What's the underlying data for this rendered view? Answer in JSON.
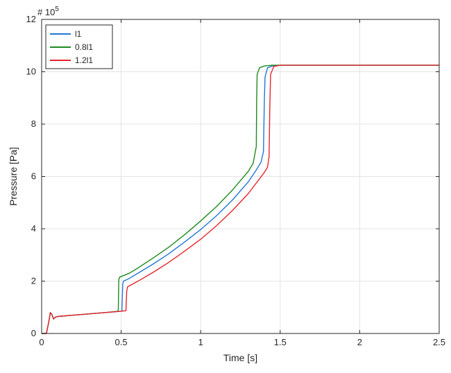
{
  "chart_data": {
    "type": "line",
    "title": "",
    "xlabel": "Time [s]",
    "ylabel": "Pressure [Pa]",
    "y_exponent_label": "# 10",
    "y_exponent_power": "5",
    "xlim": [
      0,
      2.5
    ],
    "ylim": [
      0,
      12
    ],
    "x_ticks": [
      0,
      0.5,
      1,
      1.5,
      2,
      2.5
    ],
    "x_tick_labels": [
      "0",
      "0.5",
      "1",
      "1.5",
      "2",
      "2.5"
    ],
    "y_ticks": [
      0,
      2,
      4,
      6,
      8,
      10,
      12
    ],
    "y_tick_labels": [
      "0",
      "2",
      "4",
      "6",
      "8",
      "10",
      "12"
    ],
    "y_unit_multiplier": "1e5",
    "grid": true,
    "legend_position": "top-left",
    "series": [
      {
        "name": "l1",
        "color": "#1f77d4",
        "points": [
          [
            0,
            0
          ],
          [
            0.03,
            0.0
          ],
          [
            0.045,
            0.45
          ],
          [
            0.055,
            0.8
          ],
          [
            0.065,
            0.72
          ],
          [
            0.075,
            0.55
          ],
          [
            0.085,
            0.62
          ],
          [
            0.1,
            0.65
          ],
          [
            0.2,
            0.7
          ],
          [
            0.3,
            0.75
          ],
          [
            0.4,
            0.8
          ],
          [
            0.5,
            0.85
          ],
          [
            0.505,
            0.86
          ],
          [
            0.51,
            1.9
          ],
          [
            0.515,
            2.0
          ],
          [
            0.55,
            2.1
          ],
          [
            0.6,
            2.28
          ],
          [
            0.7,
            2.65
          ],
          [
            0.8,
            3.05
          ],
          [
            0.9,
            3.5
          ],
          [
            1.0,
            3.97
          ],
          [
            1.1,
            4.5
          ],
          [
            1.2,
            5.1
          ],
          [
            1.3,
            5.8
          ],
          [
            1.35,
            6.25
          ],
          [
            1.38,
            6.55
          ],
          [
            1.395,
            6.95
          ],
          [
            1.4,
            8.8
          ],
          [
            1.405,
            9.8
          ],
          [
            1.42,
            10.15
          ],
          [
            1.45,
            10.22
          ],
          [
            1.5,
            10.25
          ],
          [
            2.5,
            10.25
          ]
        ]
      },
      {
        "name": "0.8l1",
        "color": "#1c8a1c",
        "points": [
          [
            0,
            0
          ],
          [
            0.03,
            0.0
          ],
          [
            0.045,
            0.45
          ],
          [
            0.055,
            0.8
          ],
          [
            0.065,
            0.72
          ],
          [
            0.075,
            0.55
          ],
          [
            0.085,
            0.62
          ],
          [
            0.1,
            0.65
          ],
          [
            0.2,
            0.7
          ],
          [
            0.3,
            0.75
          ],
          [
            0.4,
            0.8
          ],
          [
            0.48,
            0.85
          ],
          [
            0.482,
            0.9
          ],
          [
            0.485,
            2.05
          ],
          [
            0.49,
            2.15
          ],
          [
            0.55,
            2.3
          ],
          [
            0.6,
            2.48
          ],
          [
            0.7,
            2.88
          ],
          [
            0.8,
            3.3
          ],
          [
            0.9,
            3.78
          ],
          [
            1.0,
            4.3
          ],
          [
            1.1,
            4.85
          ],
          [
            1.2,
            5.48
          ],
          [
            1.3,
            6.2
          ],
          [
            1.33,
            6.5
          ],
          [
            1.35,
            7.15
          ],
          [
            1.352,
            8.9
          ],
          [
            1.355,
            9.9
          ],
          [
            1.37,
            10.15
          ],
          [
            1.4,
            10.22
          ],
          [
            1.45,
            10.25
          ],
          [
            2.5,
            10.25
          ]
        ]
      },
      {
        "name": "1.2l1",
        "color": "#e8242b",
        "points": [
          [
            0,
            0
          ],
          [
            0.03,
            0.0
          ],
          [
            0.045,
            0.45
          ],
          [
            0.055,
            0.8
          ],
          [
            0.065,
            0.72
          ],
          [
            0.075,
            0.55
          ],
          [
            0.085,
            0.62
          ],
          [
            0.1,
            0.65
          ],
          [
            0.2,
            0.7
          ],
          [
            0.3,
            0.75
          ],
          [
            0.4,
            0.8
          ],
          [
            0.5,
            0.85
          ],
          [
            0.53,
            0.87
          ],
          [
            0.535,
            1.6
          ],
          [
            0.54,
            1.78
          ],
          [
            0.6,
            1.98
          ],
          [
            0.7,
            2.33
          ],
          [
            0.8,
            2.72
          ],
          [
            0.9,
            3.15
          ],
          [
            1.0,
            3.6
          ],
          [
            1.1,
            4.12
          ],
          [
            1.2,
            4.7
          ],
          [
            1.3,
            5.35
          ],
          [
            1.4,
            6.15
          ],
          [
            1.42,
            6.35
          ],
          [
            1.43,
            6.75
          ],
          [
            1.435,
            8.7
          ],
          [
            1.44,
            9.9
          ],
          [
            1.46,
            10.2
          ],
          [
            1.5,
            10.25
          ],
          [
            2.5,
            10.25
          ]
        ]
      }
    ]
  }
}
